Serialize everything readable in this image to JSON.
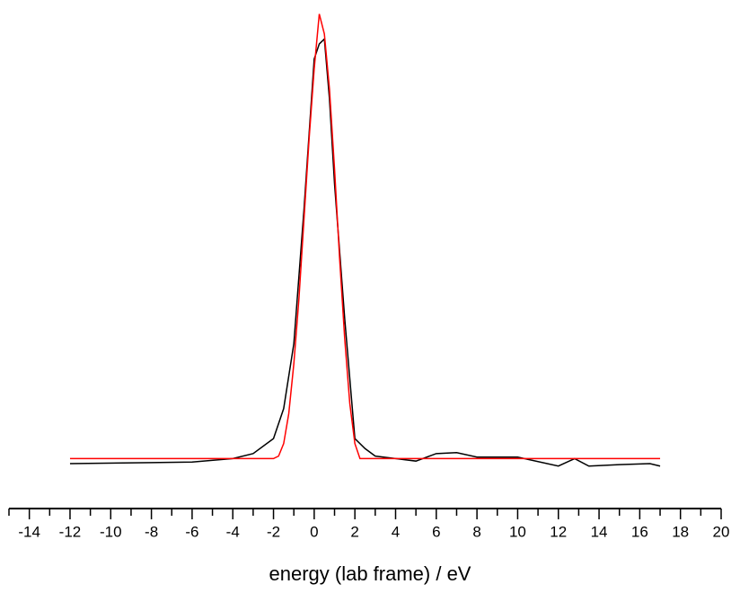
{
  "chart_data": {
    "type": "line",
    "x_label": "energy (lab frame) / eV",
    "xlim": [
      -15,
      20
    ],
    "ylim": [
      0,
      1
    ],
    "xticks": [
      -14,
      -12,
      -10,
      -8,
      -6,
      -4,
      -2,
      0,
      2,
      4,
      6,
      8,
      10,
      12,
      14,
      16,
      18,
      20
    ],
    "series": [
      {
        "color": "#000000",
        "x": [
          -12,
          -8,
          -6,
          -4,
          -3,
          -2,
          -1.5,
          -1,
          -0.5,
          0,
          0.25,
          0.5,
          0.75,
          1,
          1.5,
          2,
          2.5,
          3,
          4,
          5,
          6,
          7,
          8,
          10,
          12,
          12.8,
          13.5,
          15,
          16.5,
          17
        ],
        "values": [
          0.09,
          0.092,
          0.093,
          0.1,
          0.11,
          0.14,
          0.2,
          0.33,
          0.6,
          0.9,
          0.93,
          0.94,
          0.82,
          0.65,
          0.38,
          0.14,
          0.12,
          0.105,
          0.1,
          0.095,
          0.11,
          0.112,
          0.103,
          0.103,
          0.085,
          0.1,
          0.085,
          0.088,
          0.09,
          0.085
        ]
      },
      {
        "color": "#ff0000",
        "x": [
          -12,
          -2,
          -1.75,
          -1.5,
          -1.25,
          -1,
          -0.75,
          -0.5,
          -0.25,
          0,
          0.25,
          0.5,
          0.75,
          1,
          1.25,
          1.5,
          1.75,
          2,
          2.25,
          17
        ],
        "values": [
          0.1,
          0.1,
          0.105,
          0.13,
          0.19,
          0.29,
          0.42,
          0.58,
          0.74,
          0.88,
          0.99,
          0.95,
          0.84,
          0.68,
          0.5,
          0.34,
          0.21,
          0.13,
          0.1,
          0.1
        ]
      }
    ]
  }
}
